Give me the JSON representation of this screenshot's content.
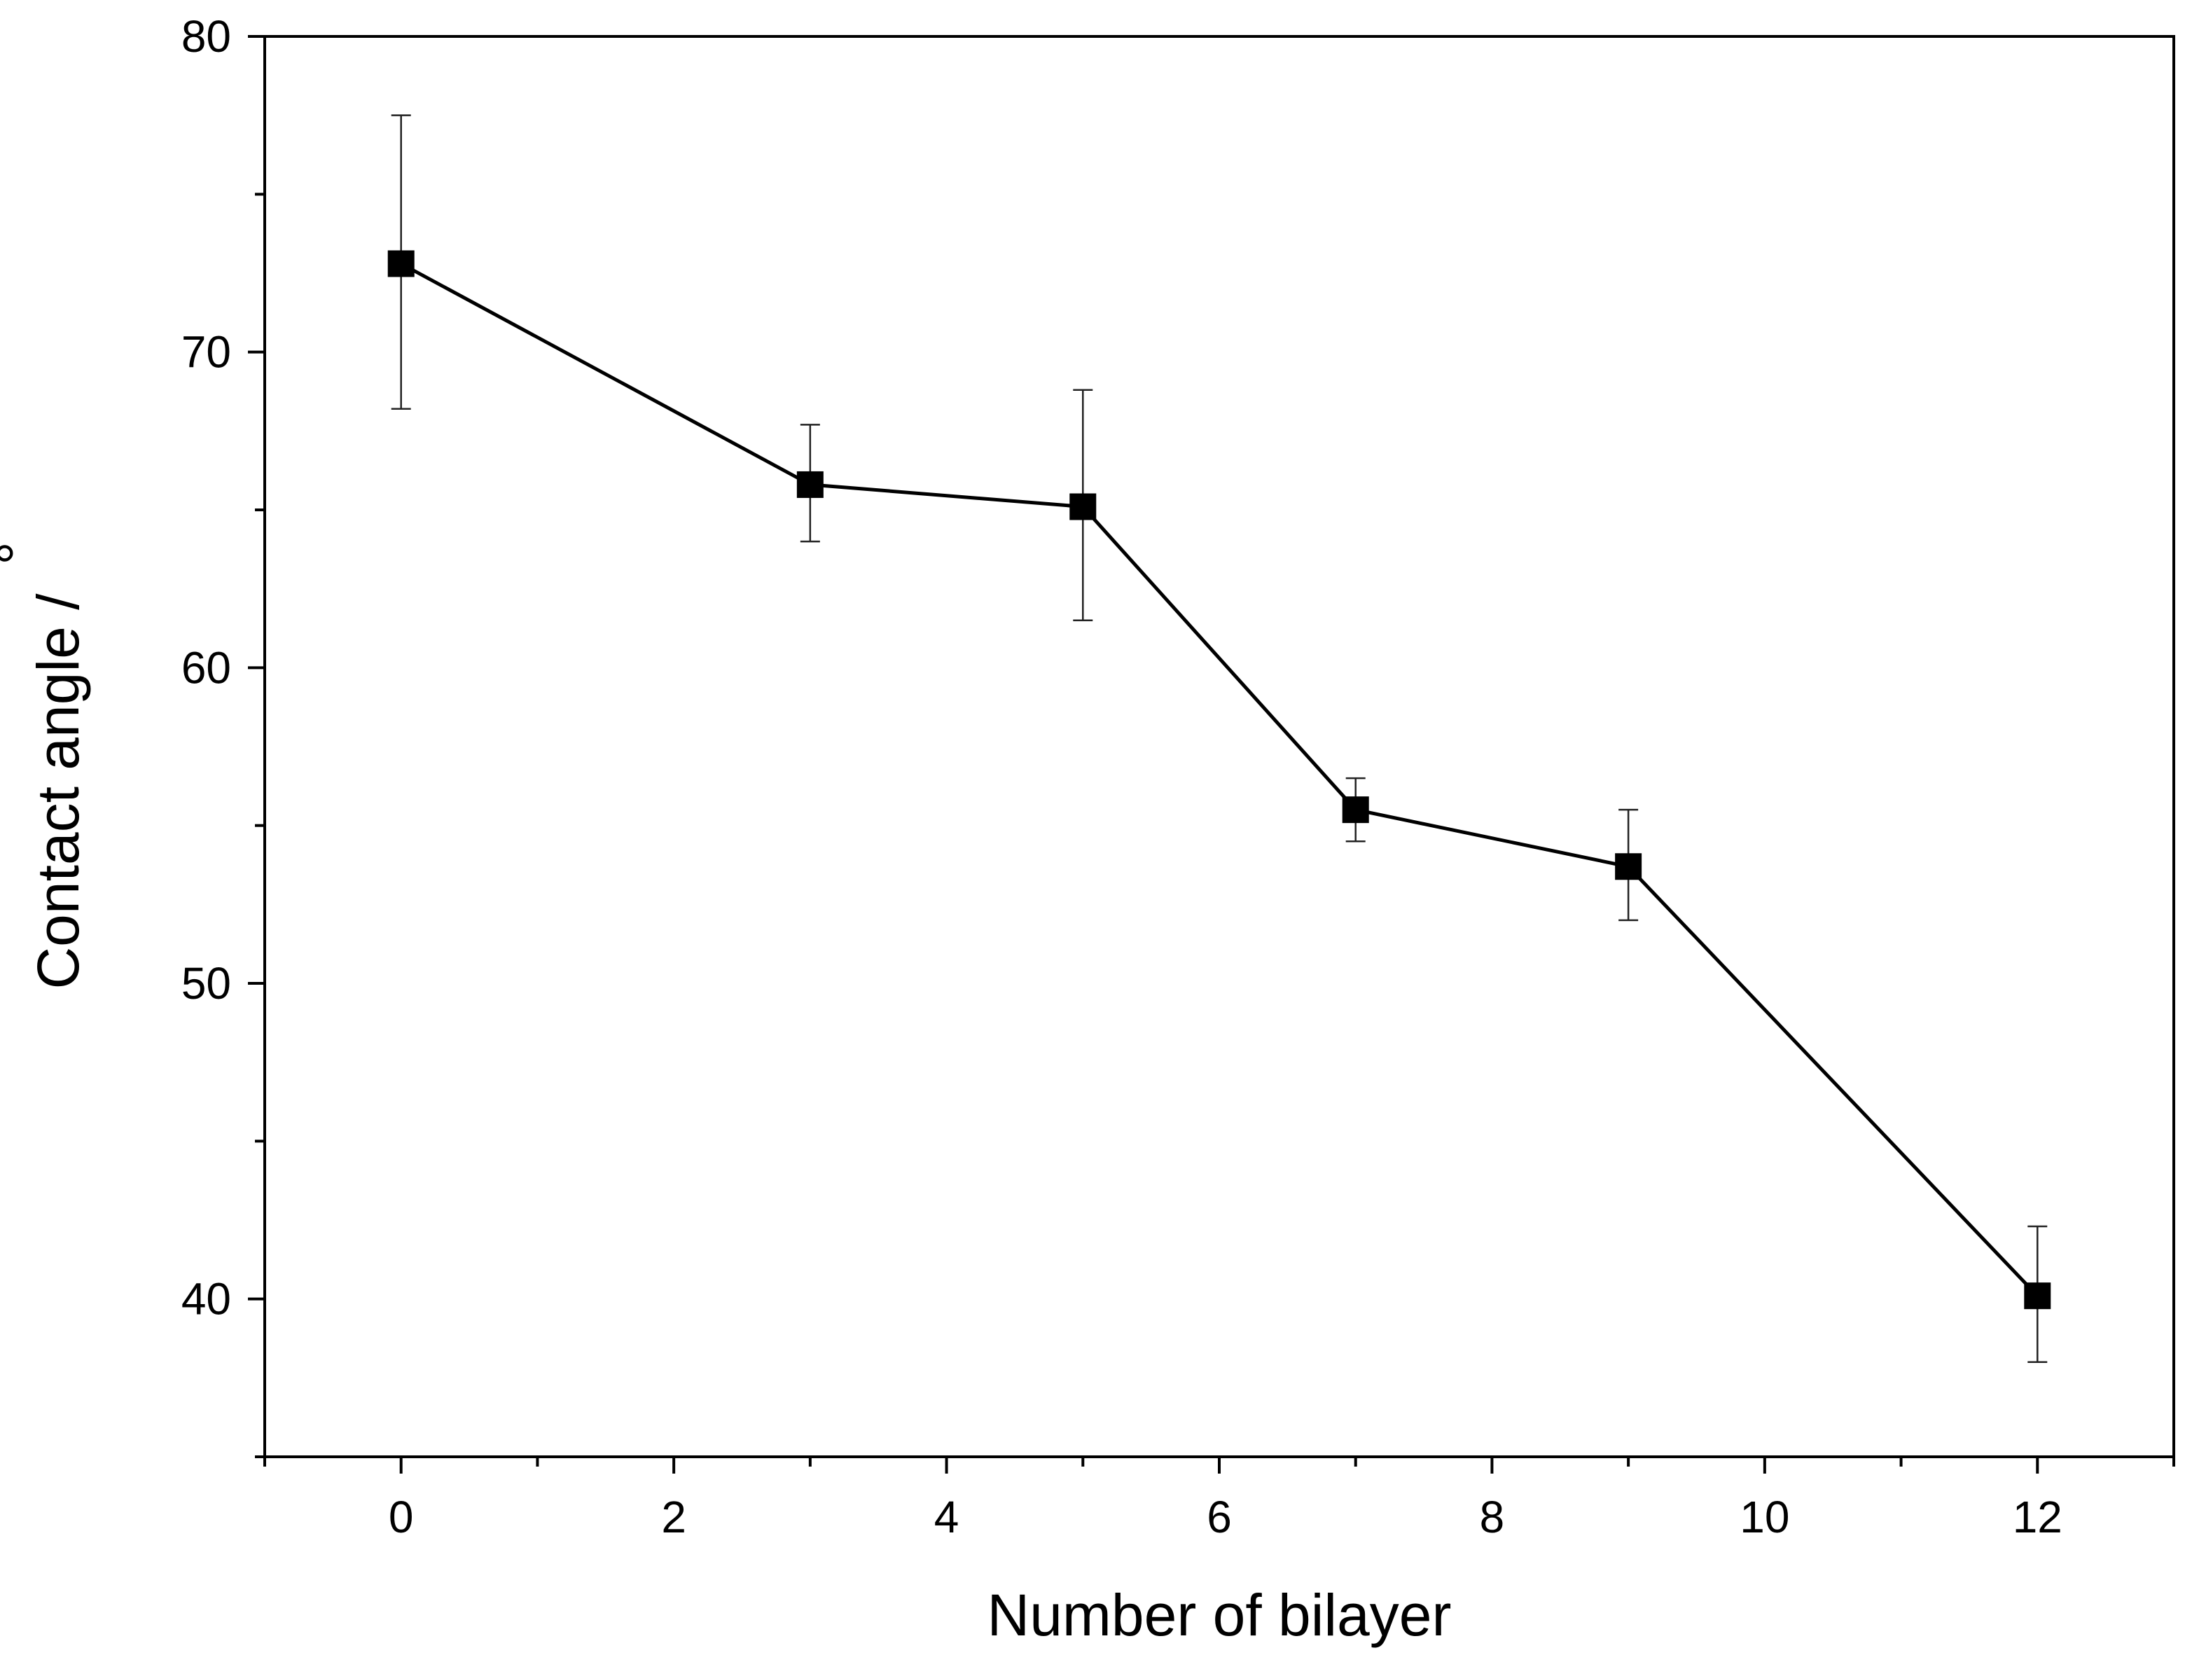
{
  "chart_data": {
    "type": "scatter",
    "xlabel": "Number of bilayer",
    "ylabel": "Contact angle /",
    "ylabel_unit": "°",
    "xlim": [
      -1,
      13
    ],
    "ylim": [
      35,
      80
    ],
    "x_ticks": [
      0,
      2,
      4,
      6,
      8,
      10,
      12
    ],
    "x_tick_labels": [
      "0",
      "2",
      "4",
      "6",
      "8",
      "10",
      "12"
    ],
    "y_ticks": [
      40,
      50,
      60,
      70,
      80
    ],
    "y_tick_labels": [
      "40",
      "50",
      "60",
      "70",
      "80"
    ],
    "grid": false,
    "legend": "none",
    "series": [
      {
        "marker": "square",
        "color": "#000000",
        "connected": true,
        "points": [
          {
            "x": 0,
            "y": 72.8,
            "err_low": 68.2,
            "err_high": 77.5
          },
          {
            "x": 3,
            "y": 65.8,
            "err_low": 64.0,
            "err_high": 67.7
          },
          {
            "x": 5,
            "y": 65.1,
            "err_low": 61.5,
            "err_high": 68.8
          },
          {
            "x": 7,
            "y": 55.5,
            "err_low": 54.5,
            "err_high": 56.5
          },
          {
            "x": 9,
            "y": 53.7,
            "err_low": 52.0,
            "err_high": 55.5
          },
          {
            "x": 12,
            "y": 40.1,
            "err_low": 38.0,
            "err_high": 42.3
          }
        ]
      }
    ]
  }
}
